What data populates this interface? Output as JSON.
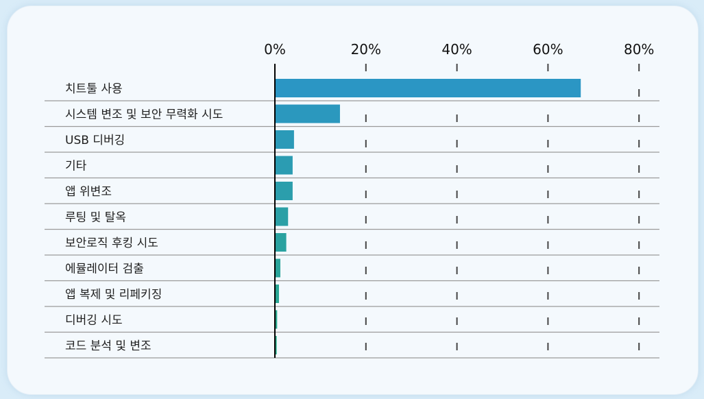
{
  "chart_data": {
    "type": "bar",
    "orientation": "horizontal",
    "categories": [
      "치트툴 사용",
      "시스템 변조 및 보안 무력화 시도",
      "USB 디버깅",
      "기타",
      "앱 위변조",
      "루팅 및 탈옥",
      "보안로직 후킹 시도",
      "에뮬레이터 검출",
      "앱 복제 및 리페키징",
      "디버깅 시도",
      "코드 분석 및 변조"
    ],
    "values": [
      67.2,
      14.3,
      4.2,
      3.9,
      3.9,
      2.9,
      2.5,
      1.2,
      0.9,
      0.5,
      0.4
    ],
    "xlim": [
      0,
      80
    ],
    "xticks": [
      0,
      20,
      40,
      60,
      80
    ],
    "tick_labels": [
      "0%",
      "20%",
      "40%",
      "60%",
      "80%"
    ],
    "x_axis_position": "top",
    "grid": "vertical dashed",
    "colors": {
      "top": "#2b96c4",
      "bottom": "#2aaa88",
      "separator": "#9a9a9a",
      "grid": "#444444"
    }
  }
}
